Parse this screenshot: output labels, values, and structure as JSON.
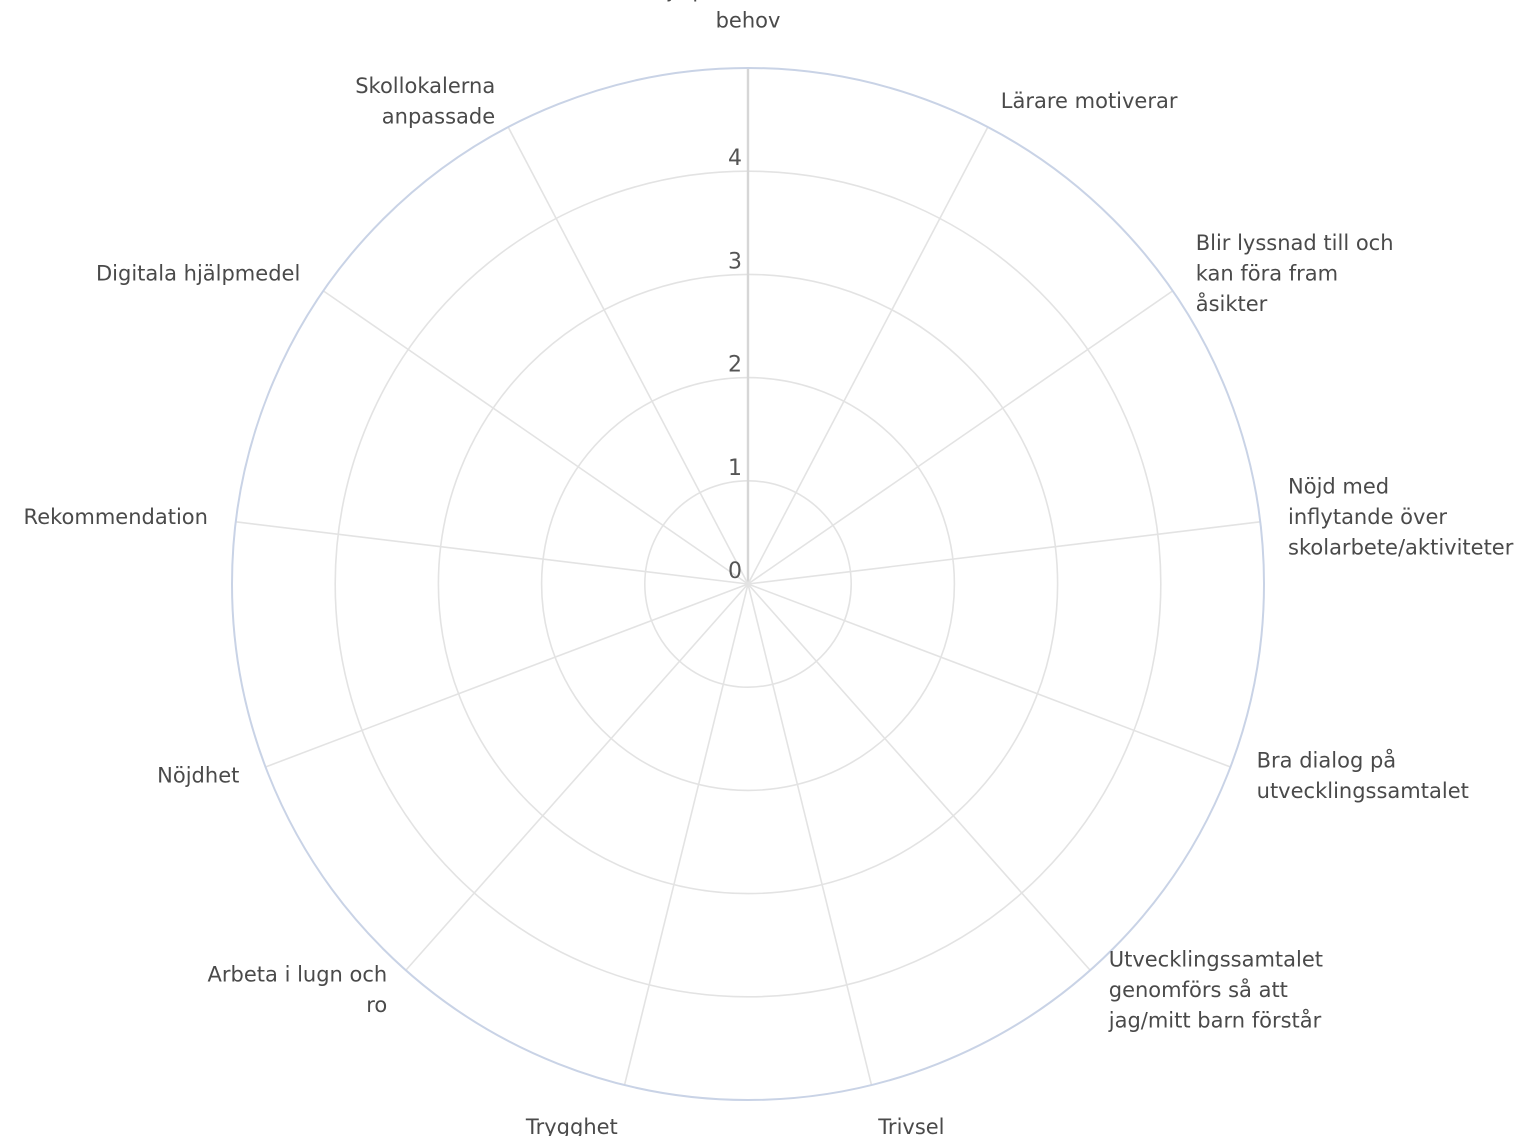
{
  "chart_data": {
    "type": "radar",
    "title": "",
    "axes": [
      "Hjälp av lärare vid behov",
      "Lärare motiverar",
      "Blir lyssnad till och kan föra fram åsikter",
      "Nöjd med inflytande över skolarbete/aktiviteter",
      "Bra dialog på utvecklingssamtalet",
      "Utvecklingssamtalet genomförs så att jag/mitt barn förstår",
      "Trivsel",
      "Trygghet",
      "Arbeta i lugn och ro",
      "Nöjdhet",
      "Rekommendation",
      "Digitala hjälpmedel",
      "Skollokalerna anpassade"
    ],
    "axis_label_lines": [
      [
        "Hjälp av lärare vid",
        "behov"
      ],
      [
        "Lärare motiverar"
      ],
      [
        "Blir lyssnad till och",
        "kan föra fram",
        "åsikter"
      ],
      [
        "Nöjd med",
        "inflytande över",
        "skolarbete/aktiviteter"
      ],
      [
        "Bra dialog på",
        "utvecklingssamtalet"
      ],
      [
        "Utvecklingssamtalet",
        "genomförs så att",
        "jag/mitt barn förstår"
      ],
      [
        "Trivsel"
      ],
      [
        "Trygghet"
      ],
      [
        "Arbeta i lugn och",
        "ro"
      ],
      [
        "Nöjdhet"
      ],
      [
        "Rekommendation"
      ],
      [
        "Digitala hjälpmedel"
      ],
      [
        "Skollokalerna",
        "anpassade"
      ]
    ],
    "radial_ticks": [
      "0",
      "1",
      "2",
      "3",
      "4"
    ],
    "rmin": 0,
    "rmax": 5,
    "grid": true,
    "series": [],
    "colors": {
      "grid": "#e3e3e3",
      "outer_ring": "#c9d3e6",
      "radial_axis": "#d6d6d6",
      "label": "#4a4a4a",
      "tick": "#555555"
    }
  }
}
